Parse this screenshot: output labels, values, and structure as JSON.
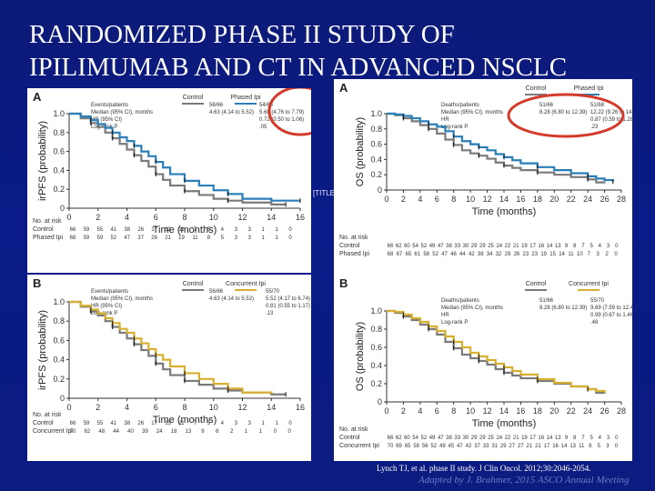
{
  "slide": {
    "title_line1": "RANDOMIZED PHASE II STUDY OF",
    "title_line2": "IPILIMUMAB AND CT IN ADVANCED NSCLC",
    "placeholder_marker": "[TITLE",
    "citation": "Lynch TJ, et al. phase II study. J Clin Oncol. 2012;30:2046-2054.",
    "adapted": "Adapted by J. Brahmer, 2015 ASCO Annual Meeting"
  },
  "colors": {
    "control": "#7a7a7a",
    "phased": "#2a7fb8",
    "concurrent": "#d8b030",
    "highlight": "#d43a2a",
    "panel_bg": "#ffffff"
  },
  "chart_data": [
    {
      "id": "tl",
      "type": "line",
      "panel_label": "A",
      "ylabel": "irPFS (probability)",
      "xlabel": "Time (months)",
      "xlim": [
        0,
        16
      ],
      "ylim": [
        0,
        1.0
      ],
      "xticks": [
        "0",
        "2",
        "4",
        "6",
        "8",
        "10",
        "12",
        "14",
        "16"
      ],
      "yticks": [
        "0",
        "0.2",
        "0.4",
        "0.6",
        "0.8",
        "1.0"
      ],
      "legend": [
        "Control",
        "Phased Ipi"
      ],
      "table": {
        "header": [
          "",
          "Events/patients",
          "Median (95% CI), months",
          "HR (95% CI)",
          "Log-rank P"
        ],
        "col1": [
          "56/66",
          "4.63 (4.14 to 5.52)",
          "",
          ""
        ],
        "col2": [
          "54/68",
          "5.68 (4.76 to 7.79)",
          "0.72 (0.50 to 1.06)",
          ".05"
        ]
      },
      "risk": {
        "title": "No. at risk",
        "rows": [
          {
            "label": "Control",
            "values": [
              "66",
              "59",
              "55",
              "41",
              "38",
              "26",
              "17",
              "13",
              "11",
              "7",
              "5",
              "4",
              "3",
              "3",
              "1",
              "1",
              "0"
            ]
          },
          {
            "label": "Phased Ipi",
            "values": [
              "68",
              "59",
              "59",
              "52",
              "47",
              "37",
              "26",
              "21",
              "19",
              "11",
              "8",
              "5",
              "3",
              "3",
              "1",
              "1",
              "0"
            ]
          }
        ]
      },
      "series": [
        {
          "name": "Control",
          "color_key": "control",
          "x": [
            0,
            0.8,
            1.5,
            2.0,
            2.5,
            3.0,
            3.5,
            4.0,
            4.5,
            5.0,
            5.5,
            6.0,
            6.5,
            7.0,
            8.0,
            9.0,
            10.0,
            11.0,
            12.0,
            14.0,
            15.0
          ],
          "y": [
            1.0,
            0.95,
            0.9,
            0.86,
            0.8,
            0.74,
            0.68,
            0.62,
            0.56,
            0.5,
            0.44,
            0.36,
            0.3,
            0.24,
            0.18,
            0.14,
            0.1,
            0.08,
            0.06,
            0.04,
            0.04
          ]
        },
        {
          "name": "Phased Ipi",
          "color_key": "phased",
          "x": [
            0,
            0.8,
            1.5,
            2.0,
            2.5,
            3.0,
            3.5,
            4.0,
            4.5,
            5.0,
            5.5,
            6.0,
            6.5,
            7.0,
            8.0,
            9.0,
            10.0,
            11.0,
            12.0,
            14.0,
            16.0
          ],
          "y": [
            1.0,
            0.97,
            0.93,
            0.89,
            0.85,
            0.8,
            0.75,
            0.71,
            0.66,
            0.6,
            0.55,
            0.49,
            0.43,
            0.36,
            0.29,
            0.24,
            0.19,
            0.15,
            0.1,
            0.08,
            0.08
          ]
        }
      ],
      "circled": "phased_column"
    },
    {
      "id": "tr",
      "type": "line",
      "panel_label": "A",
      "ylabel": "OS (probability)",
      "xlabel": "Time (months)",
      "xlim": [
        0,
        28
      ],
      "ylim": [
        0,
        1.0
      ],
      "xticks": [
        "0",
        "2",
        "4",
        "6",
        "8",
        "10",
        "12",
        "14",
        "16",
        "18",
        "20",
        "22",
        "24",
        "26",
        "28"
      ],
      "yticks": [
        "0",
        "0.2",
        "0.4",
        "0.6",
        "0.8",
        "1.0"
      ],
      "legend": [
        "Control",
        "Phased Ipi"
      ],
      "table": {
        "header": [
          "",
          "Deaths/patients",
          "Median (95% CI), months",
          "HR",
          "Log-rank P"
        ],
        "col1": [
          "51/66",
          "8.28 (6.80 to 12.39)",
          "",
          ""
        ],
        "col2": [
          "51/68",
          "12.22 (9.26 to 14.39)",
          "0.87 (0.59 to 1.28)",
          ".23"
        ]
      },
      "risk": {
        "title": "No. at risk",
        "rows": [
          {
            "label": "Control",
            "values": [
              "66",
              "62",
              "60",
              "54",
              "52",
              "49",
              "47",
              "38",
              "33",
              "30",
              "29",
              "29",
              "25",
              "24",
              "22",
              "21",
              "19",
              "17",
              "16",
              "14",
              "13",
              "9",
              "8",
              "7",
              "5",
              "4",
              "3",
              "0"
            ]
          },
          {
            "label": "Phased Ipi",
            "values": [
              "68",
              "67",
              "65",
              "61",
              "58",
              "52",
              "47",
              "46",
              "44",
              "42",
              "38",
              "34",
              "32",
              "29",
              "26",
              "23",
              "23",
              "19",
              "15",
              "14",
              "11",
              "10",
              "7",
              "3",
              "2",
              "0"
            ]
          }
        ]
      },
      "series": [
        {
          "name": "Control",
          "color_key": "control",
          "x": [
            0,
            1,
            2,
            3,
            4,
            5,
            6,
            7,
            8,
            9,
            10,
            11,
            12,
            13,
            14,
            15,
            16,
            18,
            20,
            22,
            24,
            25,
            26
          ],
          "y": [
            1.0,
            0.98,
            0.94,
            0.9,
            0.85,
            0.8,
            0.74,
            0.66,
            0.59,
            0.52,
            0.48,
            0.45,
            0.41,
            0.36,
            0.32,
            0.29,
            0.26,
            0.23,
            0.2,
            0.17,
            0.14,
            0.1,
            0.09
          ]
        },
        {
          "name": "Phased Ipi",
          "color_key": "phased",
          "x": [
            0,
            1,
            2,
            3,
            4,
            5,
            6,
            7,
            8,
            9,
            10,
            11,
            12,
            13,
            14,
            15,
            16,
            18,
            20,
            22,
            24,
            25,
            26,
            27
          ],
          "y": [
            1.0,
            0.99,
            0.97,
            0.94,
            0.9,
            0.86,
            0.83,
            0.77,
            0.7,
            0.64,
            0.6,
            0.56,
            0.52,
            0.47,
            0.43,
            0.39,
            0.35,
            0.3,
            0.26,
            0.22,
            0.18,
            0.15,
            0.13,
            0.11
          ]
        }
      ],
      "circled": "phased_column"
    },
    {
      "id": "bl",
      "type": "line",
      "panel_label": "B",
      "ylabel": "irPFS (probability)",
      "xlabel": "Time (months)",
      "xlim": [
        0,
        16
      ],
      "ylim": [
        0,
        1.0
      ],
      "xticks": [
        "0",
        "2",
        "4",
        "6",
        "8",
        "10",
        "12",
        "14",
        "16"
      ],
      "yticks": [
        "0",
        "0.2",
        "0.4",
        "0.6",
        "0.8",
        "1.0"
      ],
      "legend": [
        "Control",
        "Concurrent Ipi"
      ],
      "table": {
        "header": [
          "",
          "Events/patients",
          "Median (95% CI), months",
          "HR (95% CI)",
          "Log-rank P"
        ],
        "col1": [
          "56/66",
          "4.63 (4.14 to 5.52)",
          "",
          ""
        ],
        "col2": [
          "55/70",
          "5.52 (4.17 to 6.74)",
          "0.81 (0.55 to 1.17)",
          ".13"
        ]
      },
      "risk": {
        "title": "No. at risk",
        "rows": [
          {
            "label": "Control",
            "values": [
              "66",
              "59",
              "55",
              "41",
              "38",
              "26",
              "17",
              "13",
              "11",
              "7",
              "5",
              "4",
              "3",
              "3",
              "1",
              "1",
              "0"
            ]
          },
          {
            "label": "Concurrent Ipi",
            "values": [
              "70",
              "62",
              "48",
              "44",
              "40",
              "39",
              "24",
              "18",
              "13",
              "9",
              "6",
              "2",
              "1",
              "1",
              "0",
              "0"
            ]
          }
        ]
      },
      "series": [
        {
          "name": "Control",
          "color_key": "control",
          "x": [
            0,
            0.8,
            1.5,
            2.0,
            2.5,
            3.0,
            3.5,
            4.0,
            4.5,
            5.0,
            5.5,
            6.0,
            6.5,
            7.0,
            8.0,
            9.0,
            10.0,
            11.0,
            12.0,
            14.0,
            15.0
          ],
          "y": [
            1.0,
            0.95,
            0.9,
            0.86,
            0.8,
            0.74,
            0.68,
            0.62,
            0.56,
            0.5,
            0.44,
            0.36,
            0.3,
            0.24,
            0.18,
            0.14,
            0.1,
            0.08,
            0.06,
            0.04,
            0.04
          ]
        },
        {
          "name": "Concurrent Ipi",
          "color_key": "concurrent",
          "x": [
            0,
            0.8,
            1.5,
            2.0,
            2.5,
            3.0,
            3.5,
            4.0,
            4.5,
            5.0,
            5.5,
            6.0,
            6.5,
            7.0,
            8.0,
            9.0,
            10.0,
            11.0,
            12.0,
            14.0
          ],
          "y": [
            1.0,
            0.96,
            0.92,
            0.88,
            0.83,
            0.78,
            0.72,
            0.68,
            0.62,
            0.57,
            0.51,
            0.45,
            0.4,
            0.33,
            0.26,
            0.2,
            0.15,
            0.1,
            0.06,
            0.05
          ]
        }
      ]
    },
    {
      "id": "br",
      "type": "line",
      "panel_label": "B",
      "ylabel": "OS (probability)",
      "xlabel": "Time (months)",
      "xlim": [
        0,
        28
      ],
      "ylim": [
        0,
        1.0
      ],
      "xticks": [
        "0",
        "2",
        "4",
        "6",
        "8",
        "10",
        "12",
        "14",
        "16",
        "18",
        "20",
        "22",
        "24",
        "26",
        "28"
      ],
      "yticks": [
        "0",
        "0.2",
        "0.4",
        "0.6",
        "0.8",
        "1.0"
      ],
      "legend": [
        "Control",
        "Concurrent Ipi"
      ],
      "table": {
        "header": [
          "",
          "Deaths/patients",
          "Median (95% CI), months",
          "HR",
          "Log-rank P"
        ],
        "col1": [
          "51/66",
          "8.28 (6.80 to 12.39)",
          "",
          ""
        ],
        "col2": [
          "55/70",
          "9.69 (7.59 to 12.46)",
          "0.99 (0.67 to 1.46)",
          ".48"
        ]
      },
      "risk": {
        "title": "No. at risk",
        "rows": [
          {
            "label": "Control",
            "values": [
              "66",
              "62",
              "60",
              "54",
              "52",
              "49",
              "47",
              "38",
              "33",
              "30",
              "29",
              "29",
              "25",
              "24",
              "22",
              "21",
              "19",
              "17",
              "16",
              "14",
              "13",
              "9",
              "8",
              "7",
              "5",
              "4",
              "3",
              "0"
            ]
          },
          {
            "label": "Concurrent Ipi",
            "values": [
              "70",
              "69",
              "65",
              "59",
              "56",
              "52",
              "49",
              "45",
              "47",
              "42",
              "37",
              "33",
              "31",
              "29",
              "27",
              "27",
              "21",
              "21",
              "17",
              "16",
              "14",
              "13",
              "11",
              "8",
              "5",
              "3",
              "0"
            ]
          }
        ]
      },
      "series": [
        {
          "name": "Control",
          "color_key": "control",
          "x": [
            0,
            1,
            2,
            3,
            4,
            5,
            6,
            7,
            8,
            9,
            10,
            11,
            12,
            13,
            14,
            15,
            16,
            18,
            20,
            22,
            24,
            25,
            26
          ],
          "y": [
            1.0,
            0.98,
            0.94,
            0.9,
            0.85,
            0.8,
            0.74,
            0.66,
            0.59,
            0.52,
            0.48,
            0.45,
            0.41,
            0.36,
            0.32,
            0.29,
            0.26,
            0.23,
            0.2,
            0.17,
            0.14,
            0.1,
            0.09
          ]
        },
        {
          "name": "Concurrent Ipi",
          "color_key": "concurrent",
          "x": [
            0,
            1,
            2,
            3,
            4,
            5,
            6,
            7,
            8,
            9,
            10,
            11,
            12,
            13,
            14,
            15,
            16,
            18,
            20,
            22,
            24,
            25,
            26
          ],
          "y": [
            1.0,
            0.99,
            0.96,
            0.92,
            0.88,
            0.83,
            0.78,
            0.72,
            0.66,
            0.6,
            0.54,
            0.5,
            0.46,
            0.42,
            0.38,
            0.34,
            0.3,
            0.25,
            0.21,
            0.17,
            0.14,
            0.12,
            0.1
          ]
        }
      ]
    }
  ]
}
